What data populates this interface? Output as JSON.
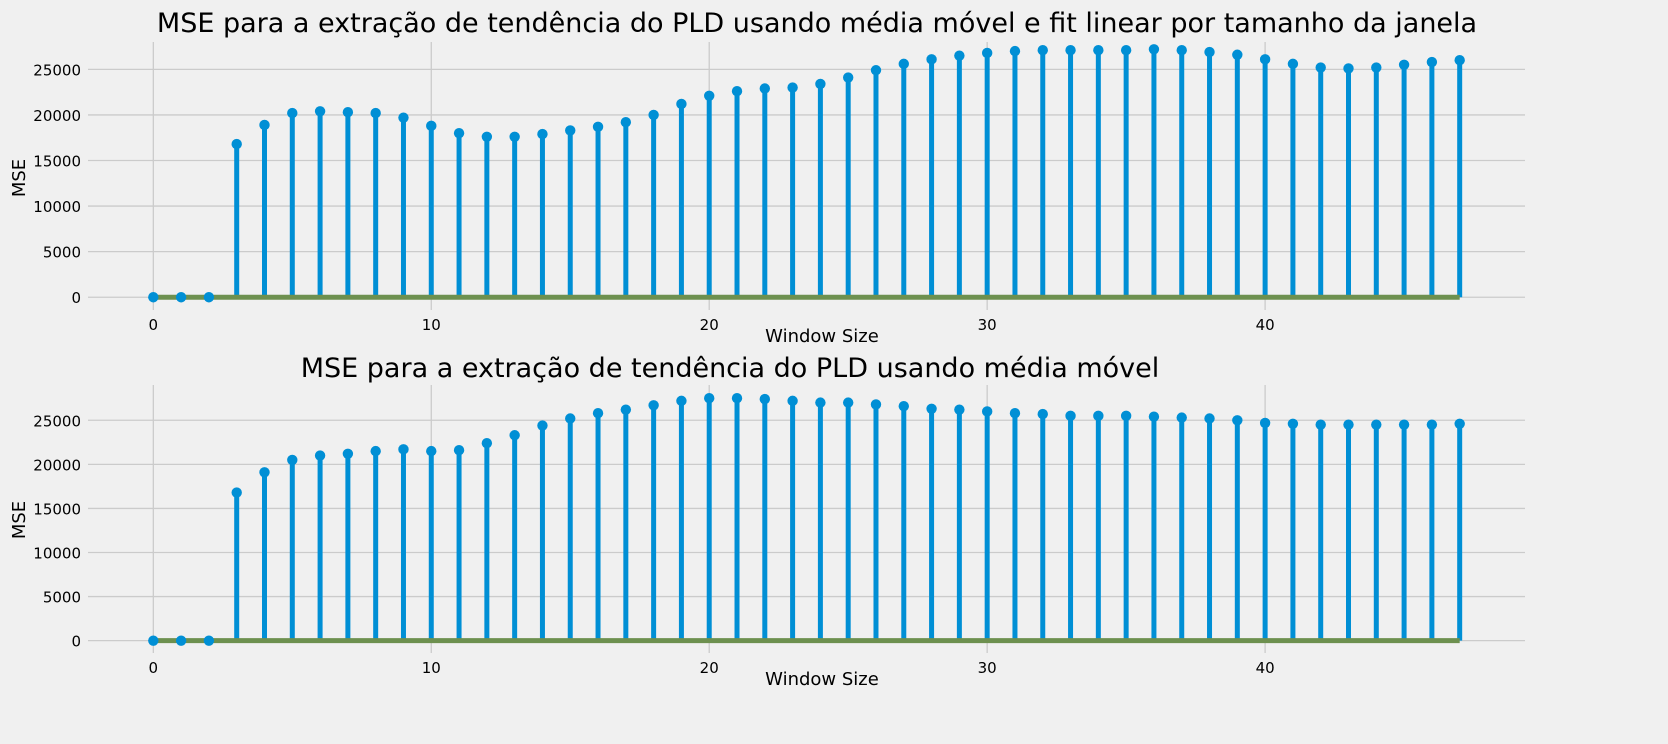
{
  "colors": {
    "background": "#f0f0f0",
    "grid": "#cbcbcb",
    "stem": "#008fd5",
    "baseline": "#6d904f",
    "text": "#000000"
  },
  "chart_data": [
    {
      "type": "stem",
      "title": "MSE para a extração de tendência do PLD usando média móvel e fit linear por tamanho da janela",
      "xlabel": "Window Size",
      "ylabel": "MSE",
      "xlim": [
        -2.35,
        49.35
      ],
      "ylim": [
        -1400,
        28000
      ],
      "xticks": [
        0,
        10,
        20,
        30,
        40
      ],
      "yticks": [
        0,
        5000,
        10000,
        15000,
        20000,
        25000
      ],
      "grid": true,
      "x": [
        0,
        1,
        2,
        3,
        4,
        5,
        6,
        7,
        8,
        9,
        10,
        11,
        12,
        13,
        14,
        15,
        16,
        17,
        18,
        19,
        20,
        21,
        22,
        23,
        24,
        25,
        26,
        27,
        28,
        29,
        30,
        31,
        32,
        33,
        34,
        35,
        36,
        37,
        38,
        39,
        40,
        41,
        42,
        43,
        44,
        45,
        46,
        47
      ],
      "values": [
        0,
        0,
        0,
        16800,
        18900,
        20200,
        20400,
        20300,
        20200,
        19700,
        18800,
        18000,
        17600,
        17600,
        17900,
        18300,
        18700,
        19200,
        20000,
        21200,
        22100,
        22600,
        22900,
        23000,
        23400,
        24100,
        24900,
        25600,
        26100,
        26500,
        26800,
        27000,
        27100,
        27100,
        27100,
        27100,
        27200,
        27100,
        26900,
        26600,
        26100,
        25600,
        25200,
        25100,
        25200,
        25500,
        25800,
        26000
      ]
    },
    {
      "type": "stem",
      "title": "MSE para a extração de tendência do PLD usando média móvel",
      "xlabel": "Window Size",
      "ylabel": "MSE",
      "xlim": [
        -2.35,
        49.35
      ],
      "ylim": [
        -1400,
        29000
      ],
      "xticks": [
        0,
        10,
        20,
        30,
        40
      ],
      "yticks": [
        0,
        5000,
        10000,
        15000,
        20000,
        25000
      ],
      "grid": true,
      "x": [
        0,
        1,
        2,
        3,
        4,
        5,
        6,
        7,
        8,
        9,
        10,
        11,
        12,
        13,
        14,
        15,
        16,
        17,
        18,
        19,
        20,
        21,
        22,
        23,
        24,
        25,
        26,
        27,
        28,
        29,
        30,
        31,
        32,
        33,
        34,
        35,
        36,
        37,
        38,
        39,
        40,
        41,
        42,
        43,
        44,
        45,
        46,
        47
      ],
      "values": [
        0,
        0,
        0,
        16800,
        19100,
        20500,
        21000,
        21200,
        21500,
        21700,
        21500,
        21600,
        22400,
        23300,
        24400,
        25200,
        25800,
        26200,
        26700,
        27200,
        27500,
        27500,
        27400,
        27200,
        27000,
        27000,
        26800,
        26600,
        26300,
        26200,
        26000,
        25800,
        25700,
        25500,
        25500,
        25500,
        25400,
        25300,
        25200,
        25000,
        24700,
        24600,
        24500,
        24500,
        24500,
        24500,
        24500,
        24600
      ]
    }
  ]
}
